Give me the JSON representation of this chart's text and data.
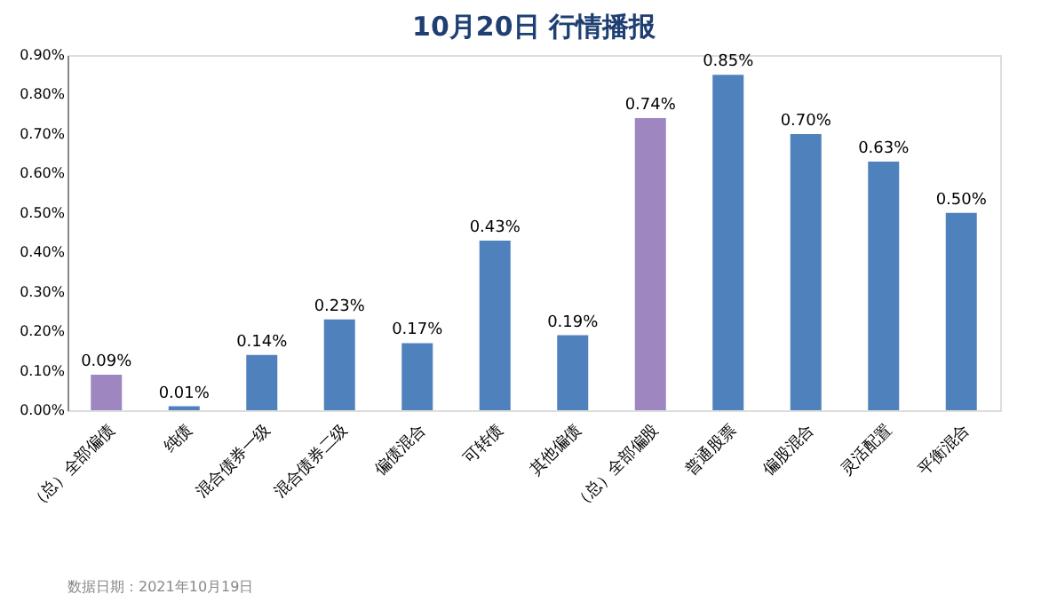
{
  "chart_data": {
    "type": "bar",
    "title": "10月20日  行情播报",
    "categories": [
      "（总）全部偏债",
      "纯债",
      "混合债券一级",
      "混合债券二级",
      "偏债混合",
      "可转债",
      "其他偏债",
      "（总）全部偏股",
      "普通股票",
      "偏股混合",
      "灵活配置",
      "平衡混合"
    ],
    "values": [
      0.09,
      0.01,
      0.14,
      0.23,
      0.17,
      0.43,
      0.19,
      0.74,
      0.85,
      0.7,
      0.63,
      0.5
    ],
    "colors": [
      "#9e86c0",
      "#4f81bd",
      "#4f81bd",
      "#4f81bd",
      "#4f81bd",
      "#4f81bd",
      "#4f81bd",
      "#9e86c0",
      "#4f81bd",
      "#4f81bd",
      "#4f81bd",
      "#4f81bd"
    ],
    "value_labels": [
      "0.09%",
      "0.01%",
      "0.14%",
      "0.23%",
      "0.17%",
      "0.43%",
      "0.19%",
      "0.74%",
      "0.85%",
      "0.70%",
      "0.63%",
      "0.50%"
    ],
    "ylim": [
      0,
      0.9
    ],
    "yticks": [
      {
        "value": 0,
        "label": "0.00%"
      },
      {
        "value": 0.1,
        "label": "0.10%"
      },
      {
        "value": 0.2,
        "label": "0.20%"
      },
      {
        "value": 0.3,
        "label": "0.30%"
      },
      {
        "value": 0.4,
        "label": "0.40%"
      },
      {
        "value": 0.5,
        "label": "0.50%"
      },
      {
        "value": 0.6,
        "label": "0.60%"
      },
      {
        "value": 0.7,
        "label": "0.70%"
      },
      {
        "value": 0.8,
        "label": "0.80%"
      },
      {
        "value": 0.9,
        "label": "0.90%"
      }
    ],
    "grid": false,
    "annotations": [
      "数据日期：2021年10月19日"
    ]
  }
}
